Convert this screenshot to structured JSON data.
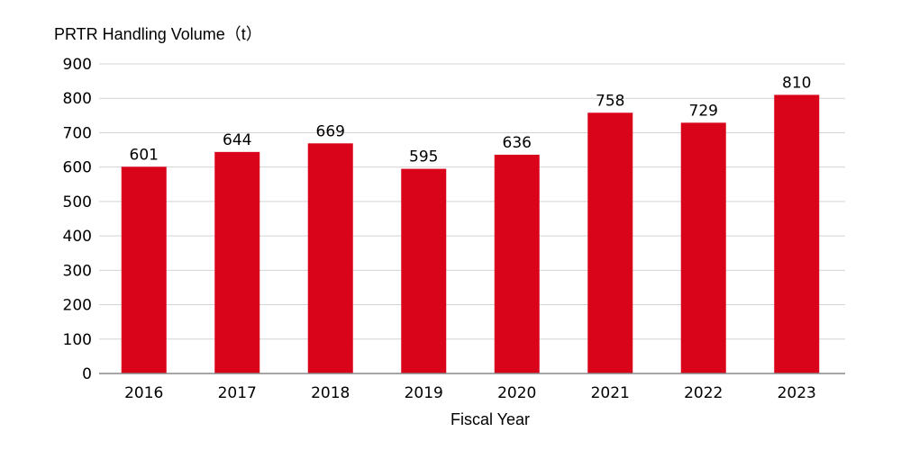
{
  "chart_data": {
    "type": "bar",
    "ylabel": "PRTR Handling Volume（t）",
    "xlabel": "Fiscal Year",
    "categories": [
      "2016",
      "2017",
      "2018",
      "2019",
      "2020",
      "2021",
      "2022",
      "2023"
    ],
    "values": [
      601,
      644,
      669,
      595,
      636,
      758,
      729,
      810
    ],
    "ylim": [
      0,
      900
    ],
    "yticks": [
      0,
      100,
      200,
      300,
      400,
      500,
      600,
      700,
      800,
      900
    ],
    "grid": true,
    "bar_color": "#d9041a",
    "grid_color": "#d3d3d3",
    "axis_color": "#888888"
  }
}
